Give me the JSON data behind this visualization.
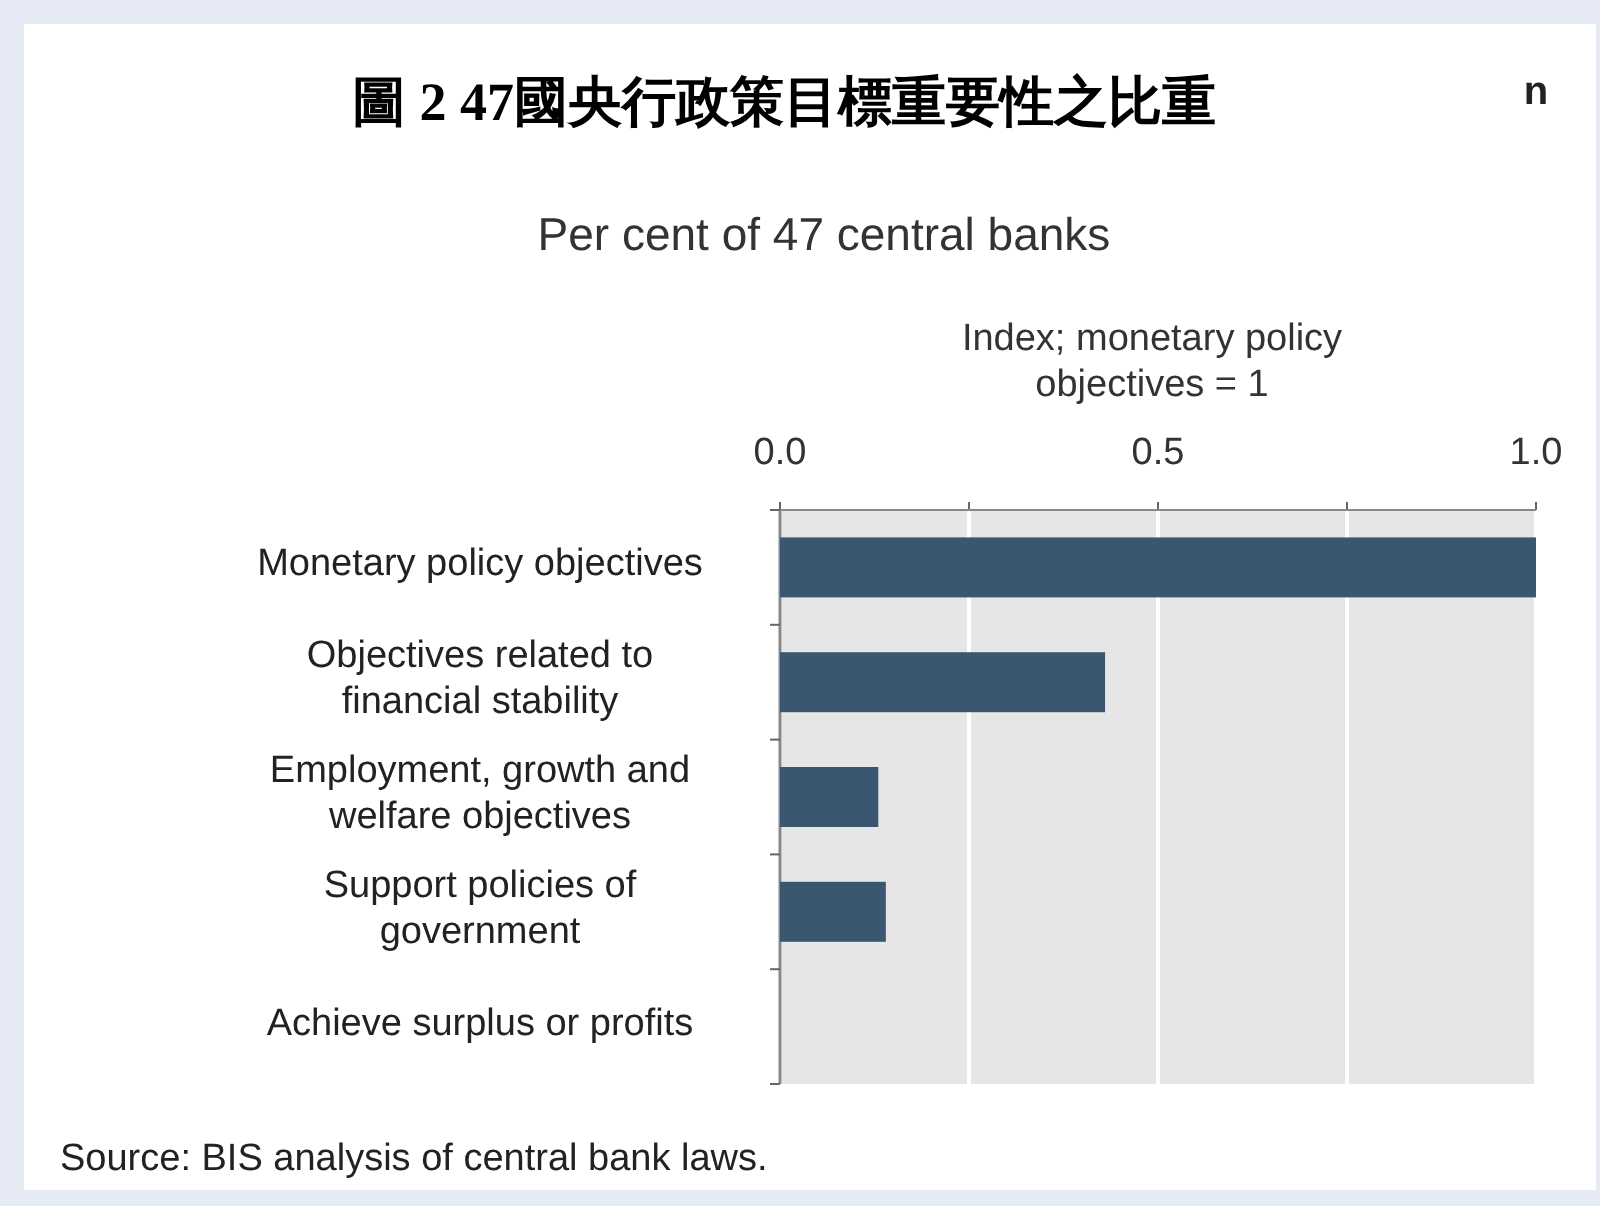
{
  "chart_data": {
    "type": "bar",
    "orientation": "horizontal",
    "title": "圖 2 47國央行政策目標重要性之比重",
    "subtitle": "Per cent of 47 central banks",
    "xlabel": "Index; monetary policy objectives = 1",
    "categories": [
      "Monetary policy objectives",
      "Objectives related to financial stability",
      "Employment, growth and welfare objectives",
      "Support policies of government",
      "Achieve surplus or profits"
    ],
    "values": [
      1.0,
      0.43,
      0.13,
      0.14,
      0
    ],
    "color": "#3b5670",
    "xlim": [
      0,
      1.0
    ],
    "xticks": [
      {
        "value": 0,
        "label": "0.0"
      },
      {
        "value": 0.25,
        "label": null
      },
      0.5,
      {
        "value": 0.75,
        "label": null
      },
      {
        "value": 1.0,
        "label": "1.0"
      }
    ],
    "grid": "x",
    "annotations": [
      "n",
      "Source: BIS analysis of central bank laws."
    ]
  }
}
